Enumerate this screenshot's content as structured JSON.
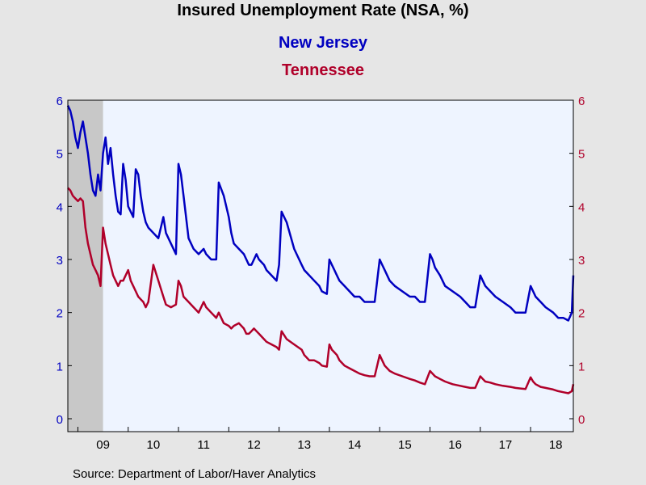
{
  "chart_data": {
    "type": "line",
    "title": "Insured Unemployment Rate (NSA, %)",
    "x_tick_labels": [
      "09",
      "10",
      "11",
      "12",
      "13",
      "14",
      "15",
      "16",
      "17",
      "18"
    ],
    "x_range": [
      2008.8,
      2018.85
    ],
    "ylim": [
      0,
      6
    ],
    "y_ticks": [
      0,
      1,
      2,
      3,
      4,
      5,
      6
    ],
    "recession_shading": [
      2008.8,
      2009.5
    ],
    "grid": false,
    "series": [
      {
        "name": "New Jersey",
        "color": "#0000c0",
        "axis": "left",
        "x": [
          2008.8,
          2008.85,
          2008.9,
          2008.95,
          2009.0,
          2009.05,
          2009.1,
          2009.15,
          2009.2,
          2009.25,
          2009.3,
          2009.35,
          2009.4,
          2009.45,
          2009.5,
          2009.55,
          2009.6,
          2009.65,
          2009.7,
          2009.75,
          2009.8,
          2009.85,
          2009.9,
          2009.95,
          2010.0,
          2010.05,
          2010.1,
          2010.15,
          2010.2,
          2010.25,
          2010.3,
          2010.35,
          2010.4,
          2010.5,
          2010.6,
          2010.7,
          2010.75,
          2010.85,
          2010.95,
          2011.0,
          2011.05,
          2011.1,
          2011.2,
          2011.3,
          2011.4,
          2011.5,
          2011.55,
          2011.65,
          2011.75,
          2011.8,
          2011.9,
          2012.0,
          2012.05,
          2012.1,
          2012.2,
          2012.3,
          2012.35,
          2012.4,
          2012.45,
          2012.5,
          2012.55,
          2012.6,
          2012.7,
          2012.75,
          2012.85,
          2012.95,
          2013.0,
          2013.05,
          2013.15,
          2013.3,
          2013.45,
          2013.5,
          2013.6,
          2013.7,
          2013.8,
          2013.85,
          2013.95,
          2014.0,
          2014.05,
          2014.1,
          2014.15,
          2014.2,
          2014.3,
          2014.4,
          2014.5,
          2014.6,
          2014.7,
          2014.8,
          2014.9,
          2015.0,
          2015.05,
          2015.1,
          2015.2,
          2015.3,
          2015.45,
          2015.6,
          2015.7,
          2015.8,
          2015.9,
          2016.0,
          2016.05,
          2016.1,
          2016.2,
          2016.3,
          2016.45,
          2016.6,
          2016.7,
          2016.8,
          2016.9,
          2017.0,
          2017.05,
          2017.1,
          2017.2,
          2017.3,
          2017.45,
          2017.6,
          2017.7,
          2017.8,
          2017.9,
          2018.0,
          2018.05,
          2018.1,
          2018.2,
          2018.3,
          2018.45,
          2018.55,
          2018.65,
          2018.75,
          2018.82,
          2018.85
        ],
        "values": [
          5.9,
          5.8,
          5.6,
          5.3,
          5.1,
          5.4,
          5.6,
          5.3,
          5.0,
          4.6,
          4.3,
          4.2,
          4.6,
          4.3,
          5.0,
          5.3,
          4.8,
          5.1,
          4.6,
          4.2,
          3.9,
          3.85,
          4.8,
          4.5,
          4.0,
          3.9,
          3.8,
          4.7,
          4.6,
          4.2,
          3.9,
          3.7,
          3.6,
          3.5,
          3.4,
          3.8,
          3.5,
          3.3,
          3.1,
          4.8,
          4.6,
          4.2,
          3.4,
          3.2,
          3.1,
          3.2,
          3.1,
          3.0,
          3.0,
          4.45,
          4.2,
          3.8,
          3.5,
          3.3,
          3.2,
          3.1,
          3.0,
          2.9,
          2.9,
          3.0,
          3.1,
          3.0,
          2.9,
          2.8,
          2.7,
          2.6,
          2.9,
          3.9,
          3.7,
          3.2,
          2.9,
          2.8,
          2.7,
          2.6,
          2.5,
          2.4,
          2.35,
          3.0,
          2.9,
          2.8,
          2.7,
          2.6,
          2.5,
          2.4,
          2.3,
          2.3,
          2.2,
          2.2,
          2.2,
          3.0,
          2.9,
          2.8,
          2.6,
          2.5,
          2.4,
          2.3,
          2.3,
          2.2,
          2.2,
          3.1,
          3.0,
          2.85,
          2.7,
          2.5,
          2.4,
          2.3,
          2.2,
          2.1,
          2.1,
          2.7,
          2.6,
          2.5,
          2.4,
          2.3,
          2.2,
          2.1,
          2.0,
          2.0,
          2.0,
          2.5,
          2.4,
          2.3,
          2.2,
          2.1,
          2.0,
          1.9,
          1.9,
          1.85,
          2.0,
          2.7
        ]
      },
      {
        "name": "Tennessee",
        "color": "#b0002a",
        "axis": "right",
        "x": [
          2008.8,
          2008.85,
          2008.9,
          2008.95,
          2009.0,
          2009.05,
          2009.1,
          2009.15,
          2009.2,
          2009.25,
          2009.3,
          2009.35,
          2009.4,
          2009.45,
          2009.5,
          2009.55,
          2009.6,
          2009.65,
          2009.7,
          2009.75,
          2009.8,
          2009.85,
          2009.9,
          2009.95,
          2010.0,
          2010.05,
          2010.1,
          2010.15,
          2010.2,
          2010.25,
          2010.3,
          2010.35,
          2010.4,
          2010.5,
          2010.6,
          2010.7,
          2010.75,
          2010.85,
          2010.95,
          2011.0,
          2011.05,
          2011.1,
          2011.2,
          2011.3,
          2011.4,
          2011.5,
          2011.55,
          2011.65,
          2011.75,
          2011.8,
          2011.9,
          2012.0,
          2012.05,
          2012.1,
          2012.2,
          2012.3,
          2012.35,
          2012.4,
          2012.45,
          2012.5,
          2012.55,
          2012.6,
          2012.7,
          2012.75,
          2012.85,
          2012.95,
          2013.0,
          2013.05,
          2013.15,
          2013.3,
          2013.45,
          2013.5,
          2013.6,
          2013.7,
          2013.8,
          2013.85,
          2013.95,
          2014.0,
          2014.05,
          2014.1,
          2014.15,
          2014.2,
          2014.3,
          2014.4,
          2014.5,
          2014.6,
          2014.7,
          2014.8,
          2014.9,
          2015.0,
          2015.05,
          2015.1,
          2015.2,
          2015.3,
          2015.45,
          2015.6,
          2015.7,
          2015.8,
          2015.9,
          2016.0,
          2016.05,
          2016.1,
          2016.2,
          2016.3,
          2016.45,
          2016.6,
          2016.7,
          2016.8,
          2016.9,
          2017.0,
          2017.05,
          2017.1,
          2017.2,
          2017.3,
          2017.45,
          2017.6,
          2017.7,
          2017.8,
          2017.9,
          2018.0,
          2018.05,
          2018.1,
          2018.2,
          2018.3,
          2018.45,
          2018.55,
          2018.65,
          2018.75,
          2018.82,
          2018.85
        ],
        "values": [
          4.35,
          4.3,
          4.2,
          4.15,
          4.1,
          4.15,
          4.1,
          3.6,
          3.3,
          3.1,
          2.9,
          2.8,
          2.7,
          2.5,
          3.6,
          3.3,
          3.1,
          2.9,
          2.7,
          2.6,
          2.5,
          2.6,
          2.6,
          2.7,
          2.8,
          2.6,
          2.5,
          2.4,
          2.3,
          2.25,
          2.2,
          2.1,
          2.2,
          2.9,
          2.6,
          2.3,
          2.15,
          2.1,
          2.15,
          2.6,
          2.5,
          2.3,
          2.2,
          2.1,
          2.0,
          2.2,
          2.1,
          2.0,
          1.9,
          2.0,
          1.8,
          1.75,
          1.7,
          1.75,
          1.8,
          1.7,
          1.6,
          1.6,
          1.65,
          1.7,
          1.65,
          1.6,
          1.5,
          1.45,
          1.4,
          1.35,
          1.3,
          1.65,
          1.5,
          1.4,
          1.3,
          1.2,
          1.1,
          1.1,
          1.05,
          1.0,
          0.98,
          1.4,
          1.3,
          1.25,
          1.2,
          1.1,
          1.0,
          0.95,
          0.9,
          0.85,
          0.82,
          0.8,
          0.8,
          1.2,
          1.1,
          1.0,
          0.9,
          0.85,
          0.8,
          0.75,
          0.72,
          0.68,
          0.65,
          0.9,
          0.85,
          0.8,
          0.75,
          0.7,
          0.65,
          0.62,
          0.6,
          0.58,
          0.58,
          0.8,
          0.75,
          0.7,
          0.68,
          0.65,
          0.62,
          0.6,
          0.58,
          0.57,
          0.56,
          0.78,
          0.7,
          0.65,
          0.6,
          0.58,
          0.55,
          0.52,
          0.5,
          0.48,
          0.52,
          0.65
        ]
      }
    ]
  },
  "source_text": "Source:  Department of Labor/Haver Analytics"
}
